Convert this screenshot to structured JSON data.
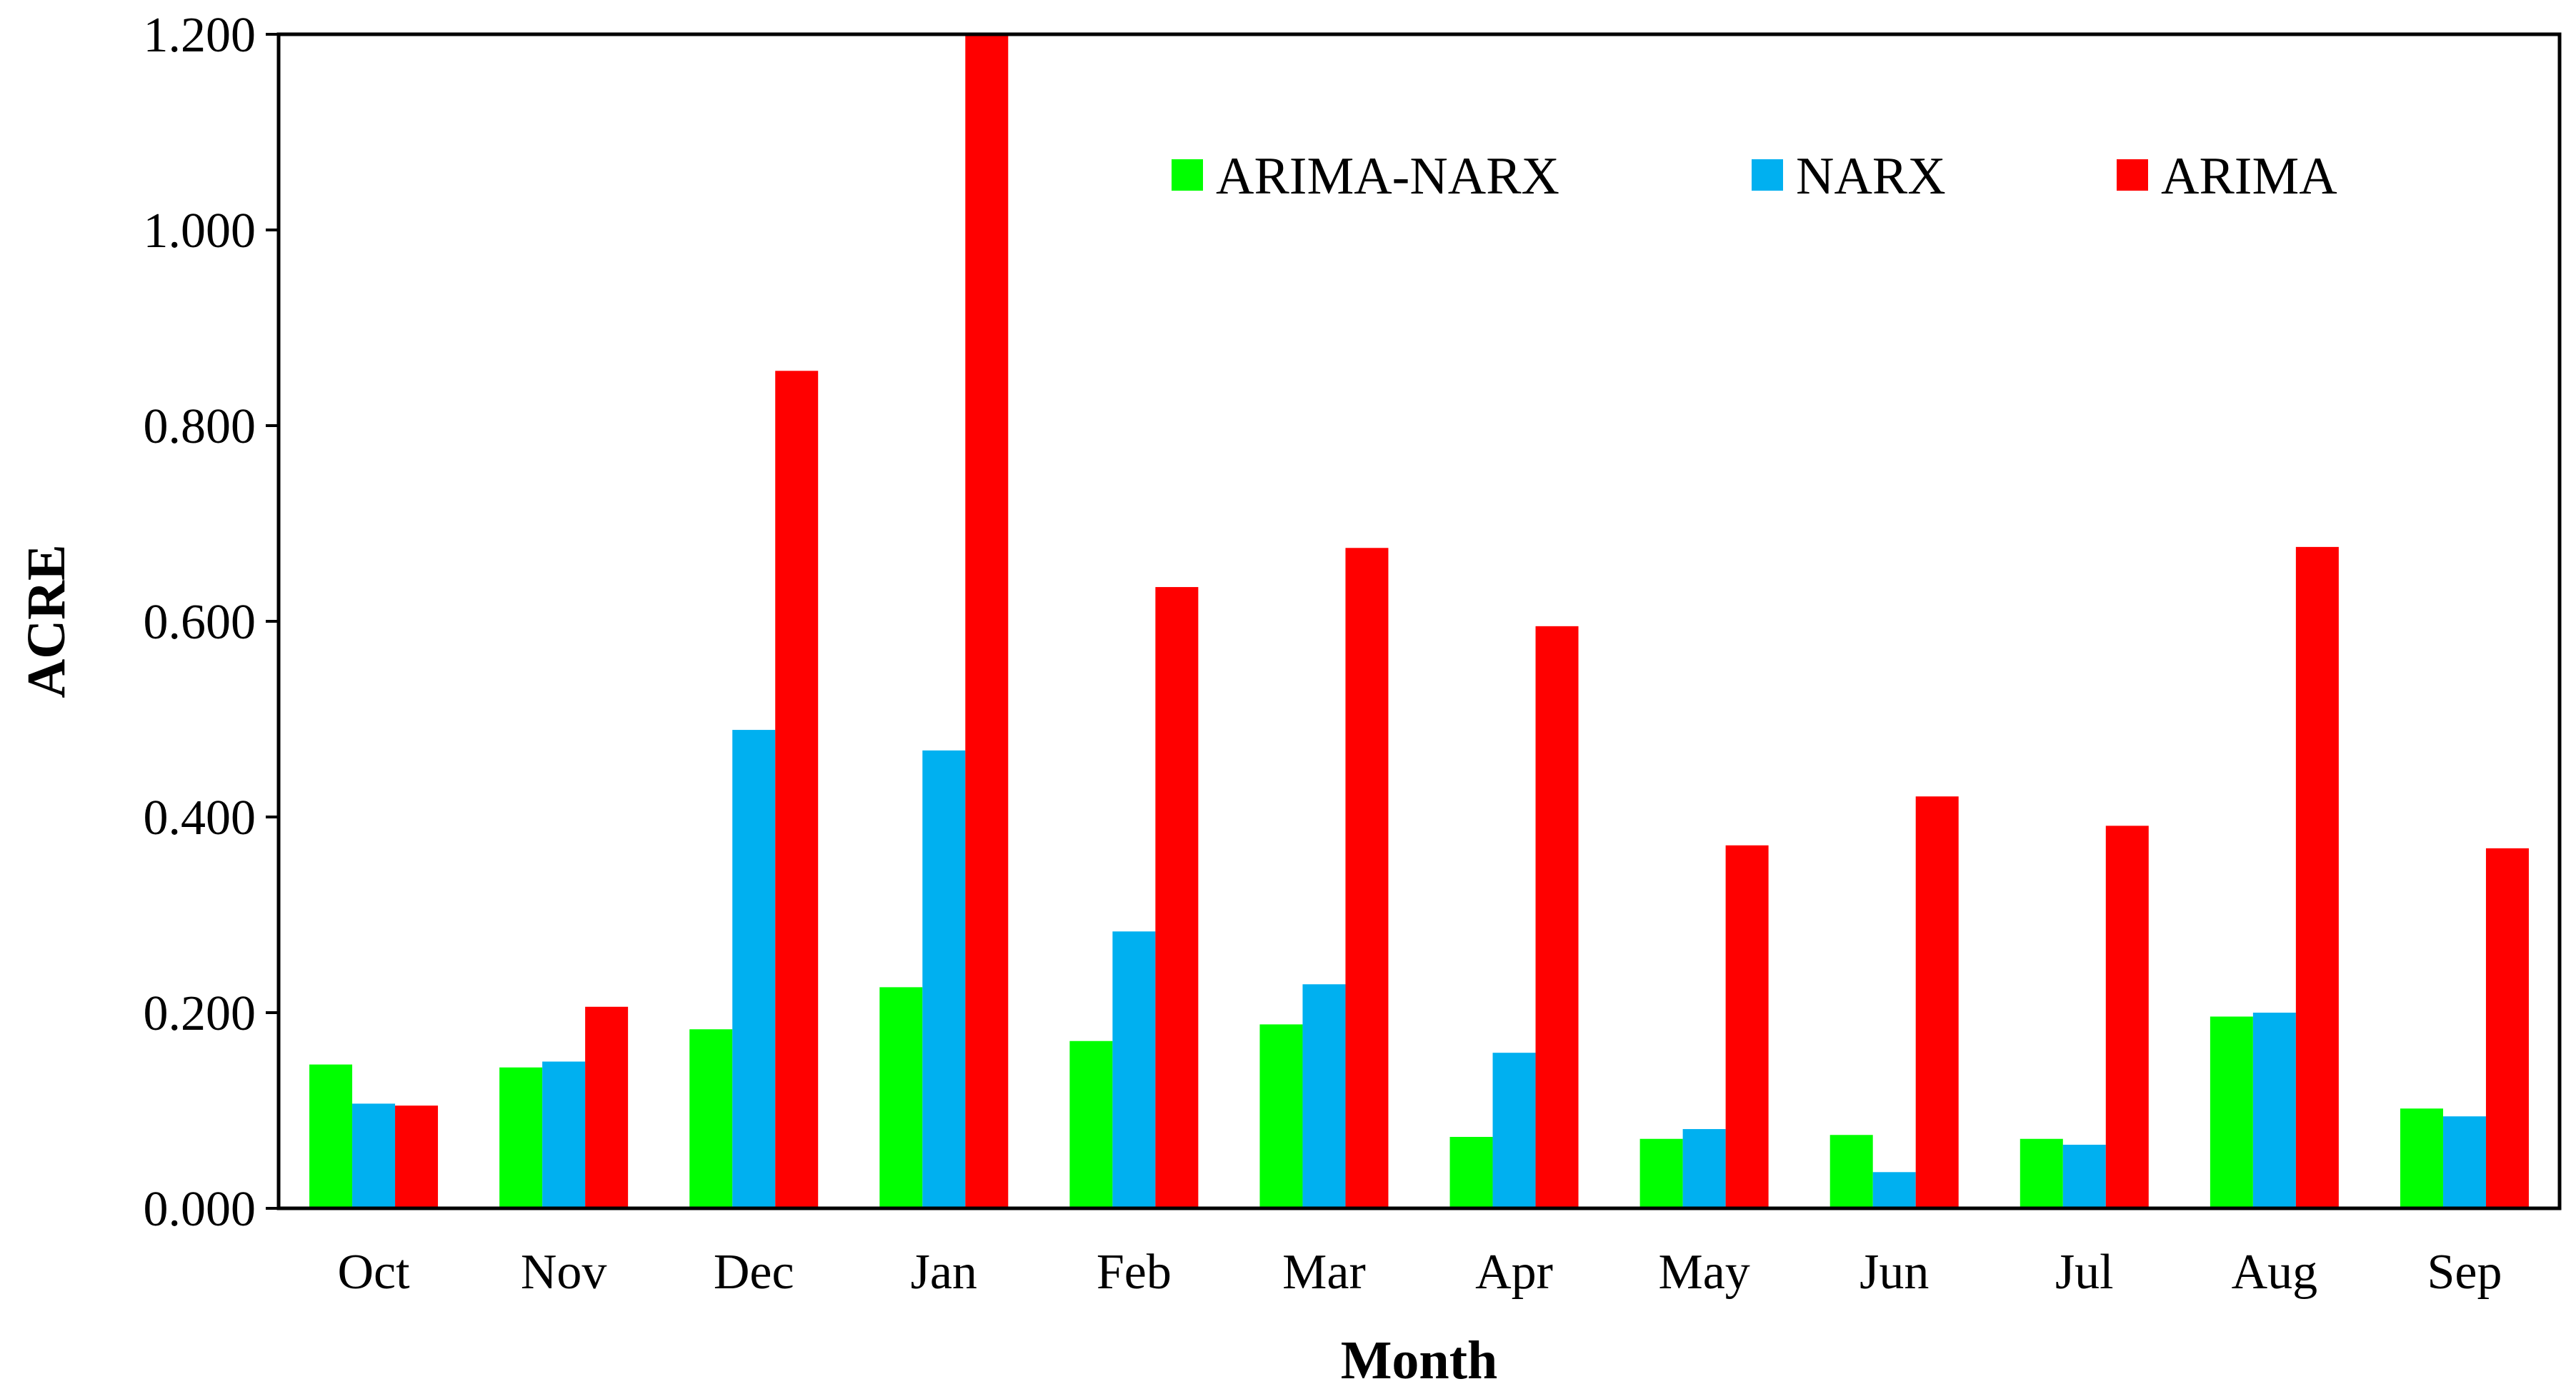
{
  "chart_data": {
    "type": "bar",
    "title": "",
    "xlabel": "Month",
    "ylabel": "ACRE",
    "ylim": [
      0,
      1.2
    ],
    "yticks": [
      "0.000",
      "0.200",
      "0.400",
      "0.600",
      "0.800",
      "1.000",
      "1.200"
    ],
    "categories": [
      "Oct",
      "Nov",
      "Dec",
      "Jan",
      "Feb",
      "Mar",
      "Apr",
      "May",
      "Jun",
      "Jul",
      "Aug",
      "Sep"
    ],
    "legend_position": "top-right",
    "series": [
      {
        "name": "ARIMA-NARX",
        "color": "#00ff00",
        "values": [
          0.147,
          0.144,
          0.183,
          0.226,
          0.171,
          0.188,
          0.073,
          0.071,
          0.075,
          0.071,
          0.196,
          0.102
        ]
      },
      {
        "name": "NARX",
        "color": "#00b0f0",
        "values": [
          0.107,
          0.15,
          0.489,
          0.468,
          0.283,
          0.229,
          0.159,
          0.081,
          0.037,
          0.065,
          0.2,
          0.094
        ]
      },
      {
        "name": "ARIMA",
        "color": "#ff0000",
        "values": [
          0.105,
          0.206,
          0.856,
          1.205,
          0.635,
          0.675,
          0.595,
          0.371,
          0.421,
          0.391,
          0.676,
          0.368
        ]
      }
    ]
  }
}
